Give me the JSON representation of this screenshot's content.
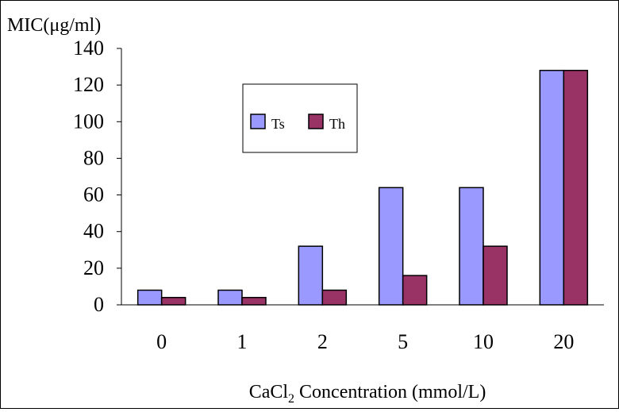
{
  "chart_data": {
    "type": "bar",
    "title": "",
    "ylabel": "MIC(μg/ml)",
    "xlabel": {
      "prefix": "CaCl",
      "subscript": "2",
      "suffix": " Concentration (mmol/L)"
    },
    "categories": [
      "0",
      "1",
      "2",
      "5",
      "10",
      "20"
    ],
    "ylim": [
      0,
      140
    ],
    "yticks": [
      "0",
      "20",
      "40",
      "60",
      "80",
      "100",
      "120",
      "140"
    ],
    "grid": false,
    "legend_position": "top-left",
    "series": [
      {
        "name": "Ts",
        "color": "#9999ff",
        "values": [
          8,
          8,
          32,
          64,
          64,
          128
        ]
      },
      {
        "name": "Th",
        "color": "#993366",
        "values": [
          4,
          4,
          8,
          16,
          32,
          128
        ]
      }
    ]
  }
}
